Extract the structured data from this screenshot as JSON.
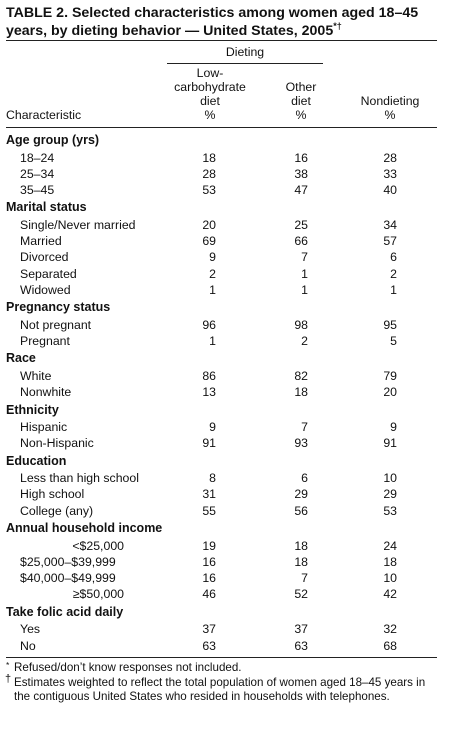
{
  "title": {
    "text": "TABLE 2. Selected characteristics among women aged 18–45 years, by dieting behavior — United States, 2005",
    "marks": "*†"
  },
  "headers": {
    "dieting": "Dieting",
    "lowcarb": [
      "Low-",
      "carbohydrate",
      "diet",
      "%"
    ],
    "other": [
      "Other",
      "diet",
      "%"
    ],
    "nondieting": [
      "Nondieting",
      "%"
    ],
    "characteristic": "Characteristic"
  },
  "sections": [
    {
      "title": "Age group (yrs)",
      "rows": [
        {
          "label": "18–24",
          "values": [
            "18",
            "16",
            "28"
          ]
        },
        {
          "label": "25–34",
          "values": [
            "28",
            "38",
            "33"
          ]
        },
        {
          "label": "35–45",
          "values": [
            "53",
            "47",
            "40"
          ]
        }
      ]
    },
    {
      "title": "Marital status",
      "rows": [
        {
          "label": "Single/Never married",
          "values": [
            "20",
            "25",
            "34"
          ]
        },
        {
          "label": "Married",
          "values": [
            "69",
            "66",
            "57"
          ]
        },
        {
          "label": "Divorced",
          "values": [
            "9",
            "7",
            "6"
          ]
        },
        {
          "label": "Separated",
          "values": [
            "2",
            "1",
            "2"
          ]
        },
        {
          "label": "Widowed",
          "values": [
            "1",
            "1",
            "1"
          ]
        }
      ]
    },
    {
      "title": "Pregnancy status",
      "rows": [
        {
          "label": "Not pregnant",
          "values": [
            "96",
            "98",
            "95"
          ]
        },
        {
          "label": "Pregnant",
          "values": [
            "1",
            "2",
            "5"
          ]
        }
      ]
    },
    {
      "title": "Race",
      "rows": [
        {
          "label": "White",
          "values": [
            "86",
            "82",
            "79"
          ]
        },
        {
          "label": "Nonwhite",
          "values": [
            "13",
            "18",
            "20"
          ]
        }
      ]
    },
    {
      "title": "Ethnicity",
      "rows": [
        {
          "label": "Hispanic",
          "values": [
            "9",
            "7",
            "9"
          ]
        },
        {
          "label": "Non-Hispanic",
          "values": [
            "91",
            "93",
            "91"
          ]
        }
      ]
    },
    {
      "title": "Education",
      "rows": [
        {
          "label": "Less than high school",
          "values": [
            "8",
            "6",
            "10"
          ]
        },
        {
          "label": "High school",
          "values": [
            "31",
            "29",
            "29"
          ]
        },
        {
          "label": "College (any)",
          "values": [
            "55",
            "56",
            "53"
          ]
        }
      ]
    },
    {
      "title": "Annual household income",
      "rows": [
        {
          "label": "<$25,000",
          "values": [
            "19",
            "18",
            "24"
          ],
          "align": "right"
        },
        {
          "label": "$25,000–$39,999",
          "values": [
            "16",
            "18",
            "18"
          ]
        },
        {
          "label": "$40,000–$49,999",
          "values": [
            "16",
            "7",
            "10"
          ]
        },
        {
          "label": "≥$50,000",
          "values": [
            "46",
            "52",
            "42"
          ],
          "align": "right"
        }
      ]
    },
    {
      "title": "Take folic acid daily",
      "rows": [
        {
          "label": "Yes",
          "values": [
            "37",
            "37",
            "32"
          ]
        },
        {
          "label": "No",
          "values": [
            "63",
            "63",
            "68"
          ]
        }
      ]
    }
  ],
  "footnotes": [
    {
      "mark": "*",
      "text": "Refused/don’t know responses not included."
    },
    {
      "mark": "†",
      "text": "Estimates weighted to reflect the total population of women aged 18–45 years in the contiguous United States who resided in households with telephones."
    }
  ]
}
